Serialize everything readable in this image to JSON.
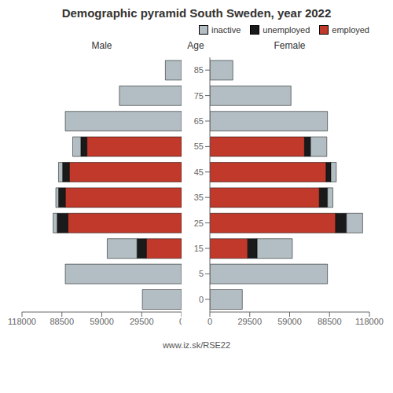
{
  "title": "Demographic pyramid South Sweden, year 2022",
  "annotations": [
    "www.iz.sk/RSE22"
  ],
  "chart_data": [
    {
      "type": "bar",
      "title": "Male",
      "orientation": "horizontal",
      "stacked": true,
      "grid": false,
      "tick_labels": "x",
      "categories": [
        0,
        5,
        15,
        25,
        35,
        45,
        55,
        65,
        75,
        85
      ],
      "series": [
        {
          "name": "inactive",
          "color": "#b2bec3",
          "values": [
            29000,
            86000,
            22000,
            3000,
            2000,
            3000,
            6000,
            86000,
            46000,
            12000
          ]
        },
        {
          "name": "unemployed",
          "color": "#1a1a1a",
          "values": [
            0,
            0,
            7000,
            8000,
            5000,
            5000,
            4500,
            0,
            0,
            0
          ]
        },
        {
          "name": "employed",
          "color": "#c0392b",
          "values": [
            0,
            0,
            26000,
            84000,
            86000,
            83000,
            70000,
            0,
            0,
            0
          ]
        }
      ],
      "xlim": [
        0,
        118000
      ],
      "xticks": [
        0,
        29500,
        59000,
        88500,
        118000
      ]
    },
    {
      "type": "bar",
      "title": "Female",
      "ylabel": "Age",
      "orientation": "horizontal",
      "stacked": true,
      "grid": false,
      "legend": "upper right",
      "categories": [
        0,
        5,
        15,
        25,
        35,
        45,
        55,
        65,
        75,
        85
      ],
      "series": [
        {
          "name": "inactive",
          "color": "#b2bec3",
          "values": [
            24000,
            87000,
            26000,
            12000,
            4000,
            4000,
            12000,
            87000,
            60000,
            17000
          ]
        },
        {
          "name": "unemployed",
          "color": "#1a1a1a",
          "values": [
            0,
            0,
            7000,
            8000,
            6000,
            3500,
            4500,
            0,
            0,
            0
          ]
        },
        {
          "name": "employed",
          "color": "#c0392b",
          "values": [
            0,
            0,
            28000,
            93000,
            81000,
            86000,
            70000,
            0,
            0,
            0
          ]
        }
      ],
      "xlim": [
        0,
        118000
      ],
      "xticks": [
        0,
        29500,
        59000,
        88500,
        118000
      ]
    }
  ]
}
